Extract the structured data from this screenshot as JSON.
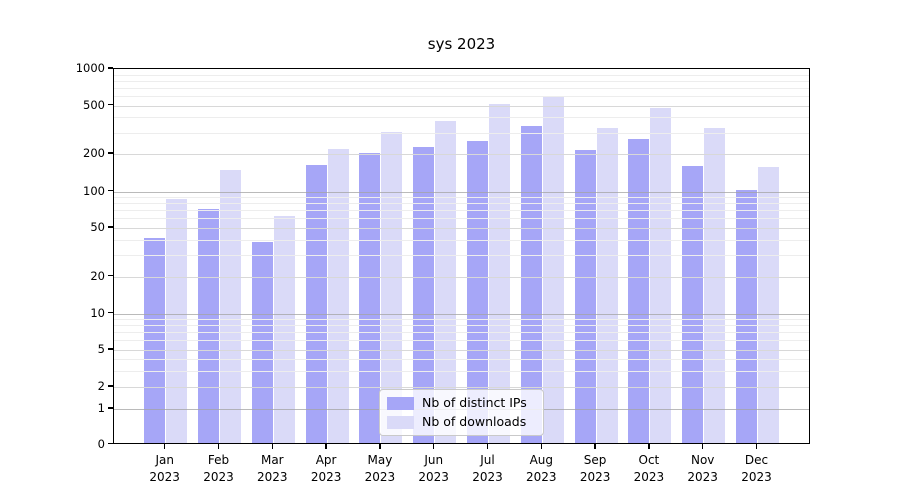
{
  "chart_data": {
    "type": "bar",
    "title": "sys 2023",
    "categories": [
      "Jan 2023",
      "Feb 2023",
      "Mar 2023",
      "Apr 2023",
      "May 2023",
      "Jun 2023",
      "Jul 2023",
      "Aug 2023",
      "Sep 2023",
      "Oct 2023",
      "Nov 2023",
      "Dec 2023"
    ],
    "x_tick_months": [
      "Jan",
      "Feb",
      "Mar",
      "Apr",
      "May",
      "Jun",
      "Jul",
      "Aug",
      "Sep",
      "Oct",
      "Nov",
      "Dec"
    ],
    "x_tick_year": "2023",
    "series": [
      {
        "name": "Nb of distinct IPs",
        "color": "#a6a6f7",
        "values": [
          40,
          70,
          37,
          158,
          200,
          220,
          248,
          332,
          209,
          259,
          157,
          100
        ]
      },
      {
        "name": "Nb of downloads",
        "color": "#dadaf8",
        "values": [
          85,
          145,
          61,
          214,
          292,
          364,
          497,
          573,
          319,
          464,
          318,
          152
        ]
      }
    ],
    "yscale": "symlog",
    "ylim": [
      0,
      1000
    ],
    "yticks": [
      0,
      1,
      2,
      5,
      10,
      20,
      50,
      100,
      200,
      500,
      1000
    ],
    "ytick_labels": [
      "0",
      "1",
      "2",
      "5",
      "10",
      "20",
      "50",
      "100",
      "200",
      "500",
      "1000"
    ],
    "grid": true,
    "legend_position": "lower center",
    "colors": {
      "grid_major": "#d8d8d8",
      "grid_minor": "#ededed",
      "grid_decade": "#a3a3a3",
      "spine": "#000000",
      "background": "#ffffff"
    }
  }
}
